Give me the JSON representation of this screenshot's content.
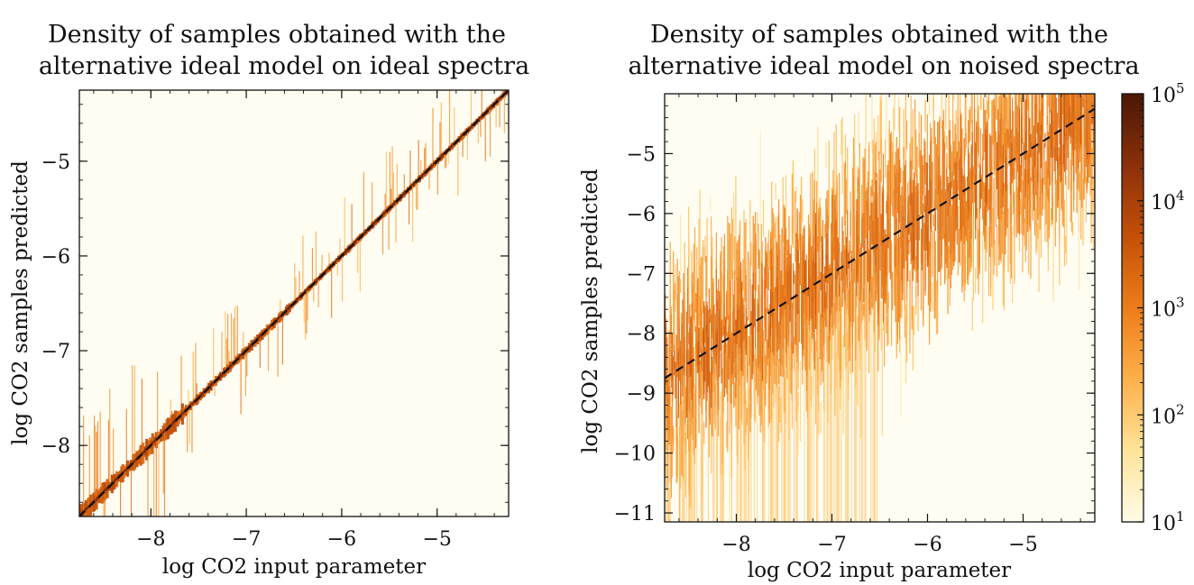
{
  "chart_data": [
    {
      "type": "heatmap",
      "title_lines": [
        "Density of samples obtained with the",
        "alternative ideal model on ideal spectra"
      ],
      "xlabel": "log CO2 input parameter",
      "ylabel": "log CO2 samples predicted",
      "xlim": [
        -8.75,
        -4.25
      ],
      "ylim": [
        -8.75,
        -4.25
      ],
      "xticks": [
        -8,
        -7,
        -6,
        -5
      ],
      "xtick_labels": [
        "−8",
        "−7",
        "−6",
        "−5"
      ],
      "yticks": [
        -8,
        -7,
        -6,
        -5
      ],
      "ytick_labels": [
        "−8",
        "−7",
        "−6",
        "−5"
      ],
      "reference_line": {
        "style": "dashed",
        "color": "#111111",
        "from": [
          -8.75,
          -8.75
        ],
        "to": [
          -4.25,
          -4.25
        ]
      },
      "density_description": "concentrated along identity line"
    },
    {
      "type": "heatmap",
      "title_lines": [
        "Density of samples obtained with the",
        "alternative ideal model on noised spectra"
      ],
      "xlabel": "log CO2 input parameter",
      "ylabel": "log CO2 samples predicted",
      "xlim": [
        -8.75,
        -4.25
      ],
      "ylim": [
        -11.15,
        -4.0
      ],
      "xticks": [
        -8,
        -7,
        -6,
        -5
      ],
      "xtick_labels": [
        "−8",
        "−7",
        "−6",
        "−5"
      ],
      "yticks": [
        -11,
        -10,
        -9,
        -8,
        -7,
        -6,
        -5
      ],
      "ytick_labels": [
        "−11",
        "−10",
        "−9",
        "−8",
        "−7",
        "−6",
        "−5"
      ],
      "reference_line": {
        "style": "dashed",
        "color": "#111111",
        "from": [
          -8.75,
          -8.75
        ],
        "to": [
          -4.25,
          -4.25
        ]
      },
      "density_description": "widely scattered around identity line"
    }
  ],
  "colorbar": {
    "scale": "log",
    "min": 10,
    "max": 100000,
    "ticks": [
      {
        "value": 10,
        "base": "10",
        "exp": "1"
      },
      {
        "value": 100,
        "base": "10",
        "exp": "2"
      },
      {
        "value": 1000,
        "base": "10",
        "exp": "3"
      },
      {
        "value": 10000,
        "base": "10",
        "exp": "4"
      },
      {
        "value": 100000,
        "base": "10",
        "exp": "5"
      }
    ],
    "colors": [
      "#fffbe8",
      "#fee49a",
      "#fdb04a",
      "#ec7d19",
      "#c45009",
      "#8a300a",
      "#4a1705"
    ]
  }
}
